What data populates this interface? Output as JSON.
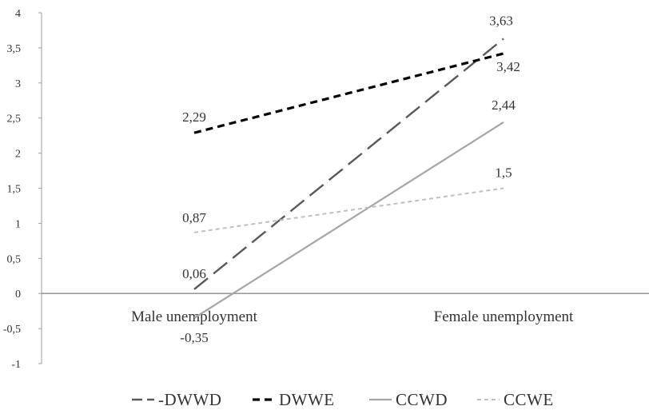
{
  "chart_data": {
    "type": "line",
    "categories": [
      "Male unemployment",
      "Female unemployment"
    ],
    "ylim": [
      -1,
      4
    ],
    "yticks": [
      "-1",
      "-0,5",
      "0",
      "0,5",
      "1",
      "1,5",
      "2",
      "2,5",
      "3",
      "3,5",
      "4"
    ],
    "ytick_values": [
      -1,
      -0.5,
      0,
      0.5,
      1,
      1.5,
      2,
      2.5,
      3,
      3.5,
      4
    ],
    "legend_position": "bottom",
    "grid": false,
    "series": [
      {
        "name": "DWWD",
        "legend_label": "-DWWD",
        "values": [
          0.06,
          3.63
        ],
        "labels": [
          "0,06",
          "3,63"
        ],
        "color": "#595959",
        "style": "long-dash"
      },
      {
        "name": "DWWE",
        "legend_label": "DWWE",
        "values": [
          2.29,
          3.42
        ],
        "labels": [
          "2,29",
          "3,42"
        ],
        "color": "#000000",
        "style": "dash"
      },
      {
        "name": "CCWD",
        "legend_label": "CCWD",
        "values": [
          -0.35,
          2.44
        ],
        "labels": [
          "-0,35",
          "2,44"
        ],
        "color": "#a6a6a6",
        "style": "solid"
      },
      {
        "name": "CCWE",
        "legend_label": "CCWE",
        "values": [
          0.87,
          1.5
        ],
        "labels": [
          "0,87",
          "1,5"
        ],
        "color": "#bfbfbf",
        "style": "short-dash"
      }
    ]
  }
}
